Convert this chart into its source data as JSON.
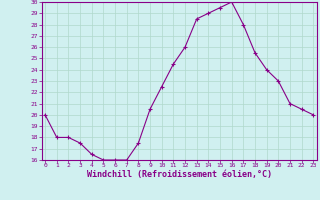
{
  "hours": [
    0,
    1,
    2,
    3,
    4,
    5,
    6,
    7,
    8,
    9,
    10,
    11,
    12,
    13,
    14,
    15,
    16,
    17,
    18,
    19,
    20,
    21,
    22,
    23
  ],
  "values": [
    20.0,
    18.0,
    18.0,
    17.5,
    16.5,
    16.0,
    16.0,
    16.0,
    17.5,
    20.5,
    22.5,
    24.5,
    26.0,
    28.5,
    29.0,
    29.5,
    30.0,
    28.0,
    25.5,
    24.0,
    23.0,
    21.0,
    20.5,
    20.0
  ],
  "ylim": [
    16,
    30
  ],
  "yticks": [
    16,
    17,
    18,
    19,
    20,
    21,
    22,
    23,
    24,
    25,
    26,
    27,
    28,
    29,
    30
  ],
  "xlabel": "Windchill (Refroidissement éolien,°C)",
  "line_color": "#880088",
  "marker": "+",
  "bg_color": "#d0f0f0",
  "grid_color": "#b0d8cc",
  "fig_bg": "#d0f0f0",
  "tick_color": "#880088",
  "label_color": "#880088",
  "spine_color": "#880088"
}
